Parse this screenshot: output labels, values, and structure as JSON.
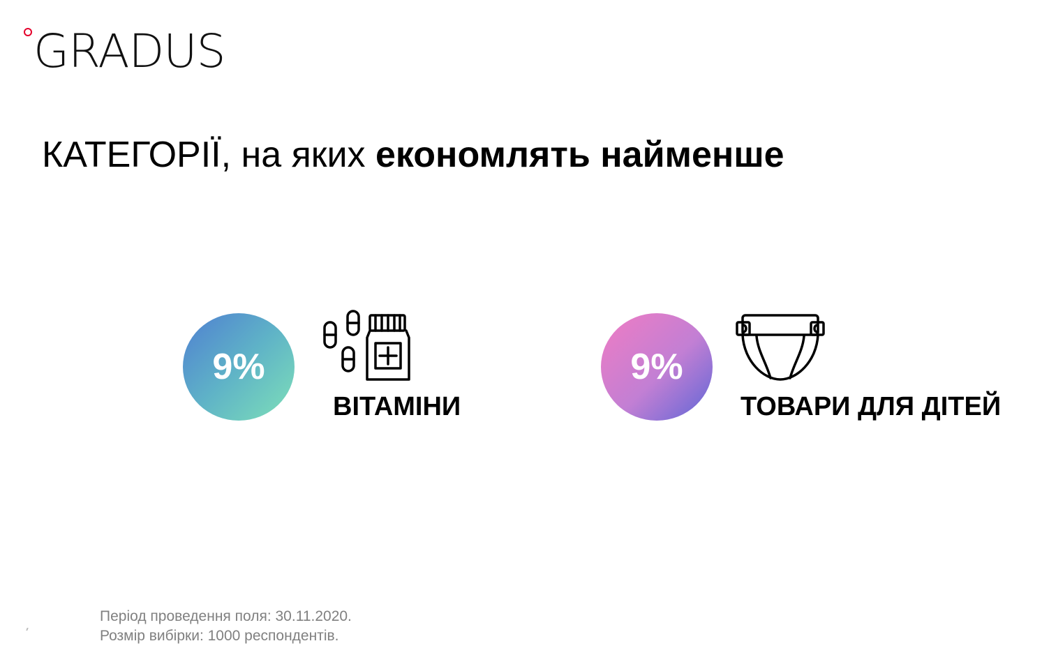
{
  "logo": {
    "text": "GRADUS",
    "dot_color": "#e4002b"
  },
  "headline": {
    "part_regular": "КАТЕГОРІЇ, на яких ",
    "part_bold": "економлять найменше"
  },
  "categories": [
    {
      "value": "9%",
      "label": "ВІТАМІНИ",
      "icon": "vitamins-pills-icon",
      "colors": [
        "#4f7fd1",
        "#7ee0b8"
      ]
    },
    {
      "value": "9%",
      "label": "ТОВАРИ ДЛЯ ДІТЕЙ",
      "icon": "diaper-icon",
      "colors": [
        "#f07cc3",
        "#5e66d6"
      ]
    }
  ],
  "footnote": {
    "line1": "Період проведення поля: 30.11.2020.",
    "line2": "Розмір вибірки: 1000 респондентів."
  }
}
